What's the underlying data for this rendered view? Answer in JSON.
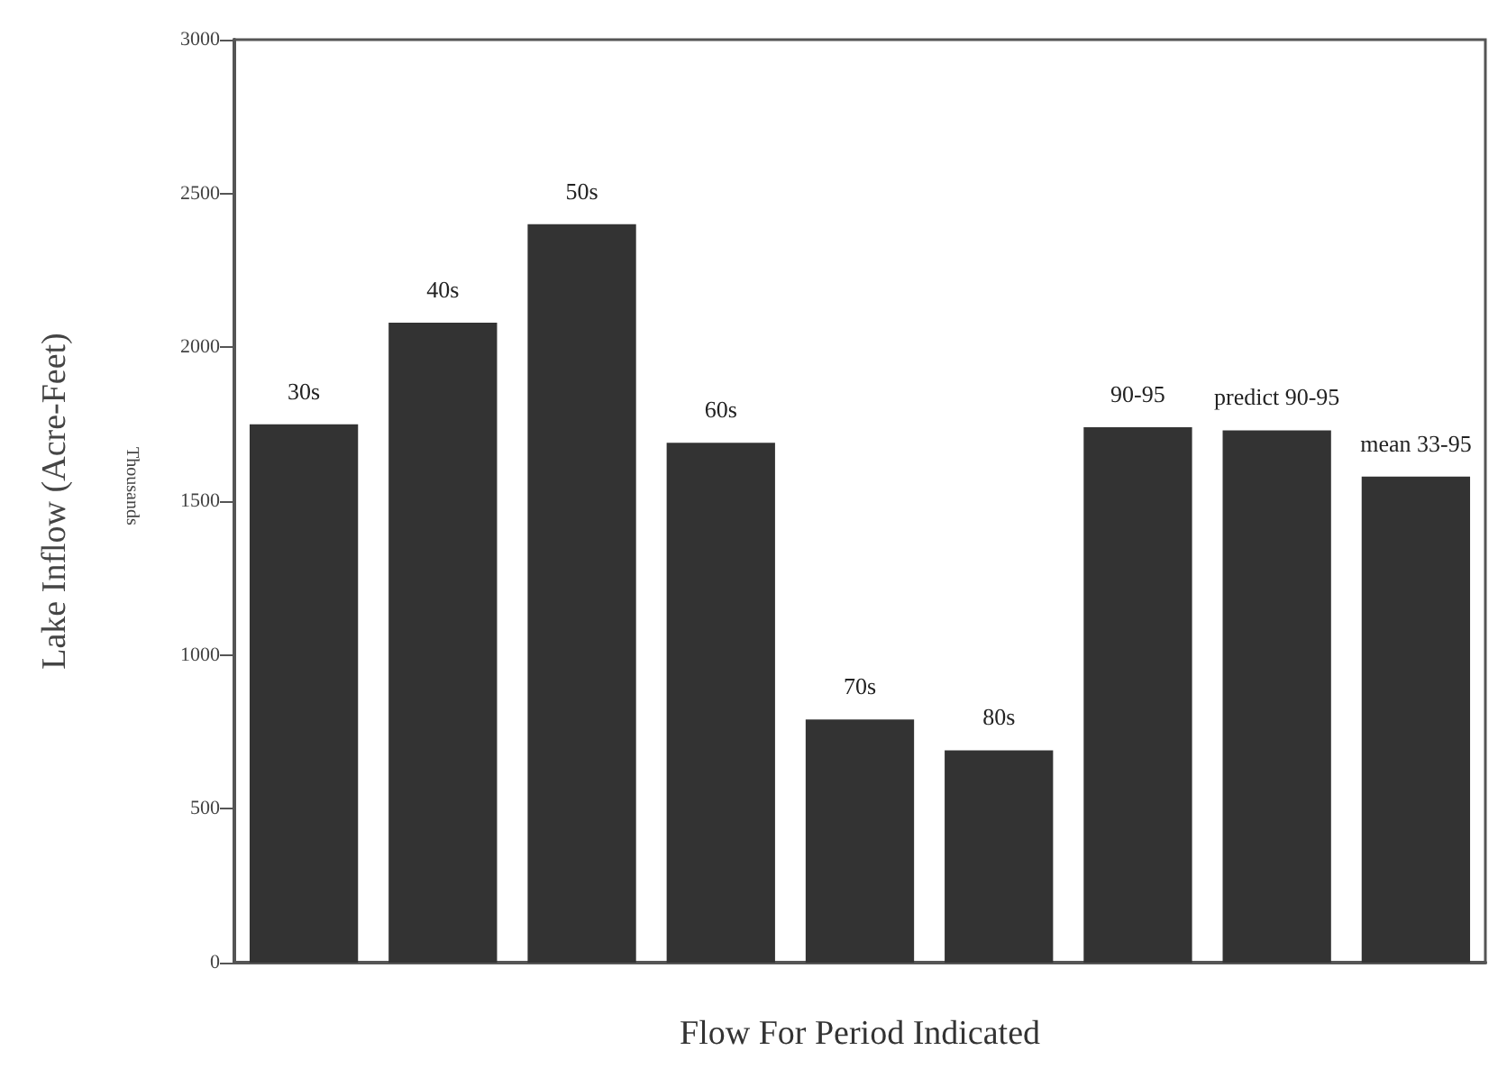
{
  "chart_data": {
    "type": "bar",
    "xlabel": "Flow For Period Indicated",
    "ylabel": "Lake Inflow (Acre-Feet)",
    "annotations": [
      "Thousands"
    ],
    "categories": [
      "30s",
      "40s",
      "50s",
      "60s",
      "70s",
      "80s",
      "90-95",
      "predict 90-95",
      "mean 33-95"
    ],
    "values": [
      1750,
      2080,
      2400,
      1690,
      790,
      690,
      1740,
      1730,
      1580
    ],
    "color": "#333333",
    "ylim": [
      0,
      3000
    ],
    "yticks": [
      0,
      500,
      1000,
      1500,
      2000,
      2500,
      3000
    ],
    "grid": false,
    "tick_labels": "y"
  }
}
